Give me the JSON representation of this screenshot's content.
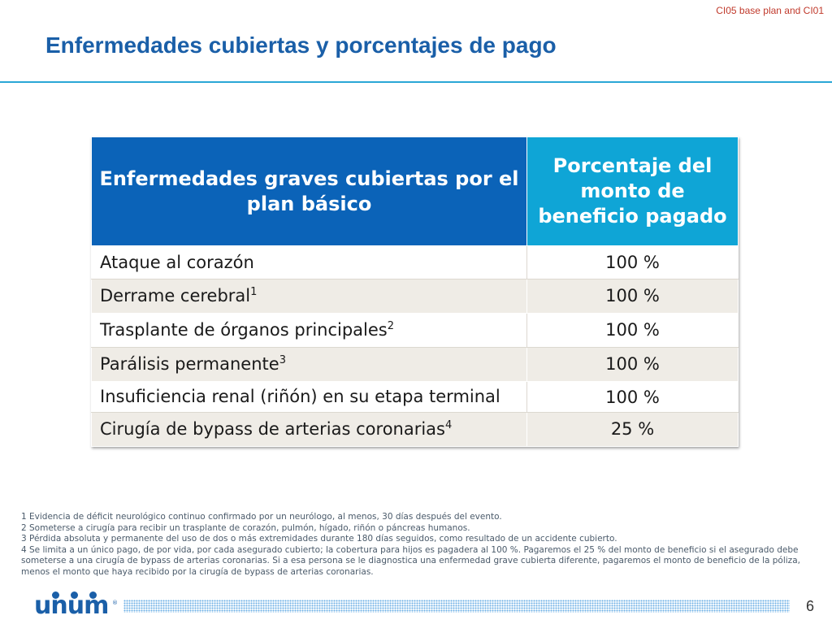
{
  "top_tag": "CI05 base plan and CI01",
  "title": "Enfermedades cubiertas y porcentajes de pago",
  "table": {
    "header_condition": "Enfermedades graves cubiertas por el plan básico",
    "header_percent": "Porcentaje del monto de beneficio pagado",
    "rows": [
      {
        "condition": "Ataque al corazón",
        "sup": "",
        "percent": "100 %"
      },
      {
        "condition": "Derrame cerebral",
        "sup": "1",
        "percent": "100 %"
      },
      {
        "condition": "Trasplante de órganos principales",
        "sup": "2",
        "percent": "100 %"
      },
      {
        "condition": "Parálisis permanente",
        "sup": "3",
        "percent": "100 %"
      },
      {
        "condition": "Insuficiencia renal (riñón) en su etapa terminal",
        "sup": "",
        "percent": "100 %"
      },
      {
        "condition": "Cirugía de bypass de arterias coronarias",
        "sup": "4",
        "percent": "25 %"
      }
    ]
  },
  "footnotes": [
    "1 Evidencia de déficit neurológico continuo confirmado por un neurólogo, al menos, 30 días después del evento.",
    "2 Someterse a cirugía para recibir un trasplante de corazón, pulmón, hígado, riñón o páncreas humanos.",
    "3 Pérdida absoluta y permanente del uso de dos o más extremidades durante 180 días seguidos, como resultado de un accidente cubierto.",
    "4 Se limita a un único pago, de por vida, por cada asegurado cubierto; la cobertura para hijos es pagadera al 100 %. Pagaremos el 25 % del monto de beneficio si el asegurado debe someterse a una cirugía de bypass de arterias coronarias. Si a esa persona se le diagnostica una enfermedad grave cubierta diferente, pagaremos el monto de beneficio de la póliza, menos el monto que haya recibido por la cirugía de bypass de arterias coronarias."
  ],
  "logo": {
    "text": "unum",
    "registered": "®"
  },
  "page_number": "6",
  "colors": {
    "title": "#1a5fa8",
    "header_condition_bg": "#0b63b8",
    "header_percent_bg": "#0fa5d6",
    "row_tint": "#efece6",
    "top_tag": "#c0392b"
  }
}
